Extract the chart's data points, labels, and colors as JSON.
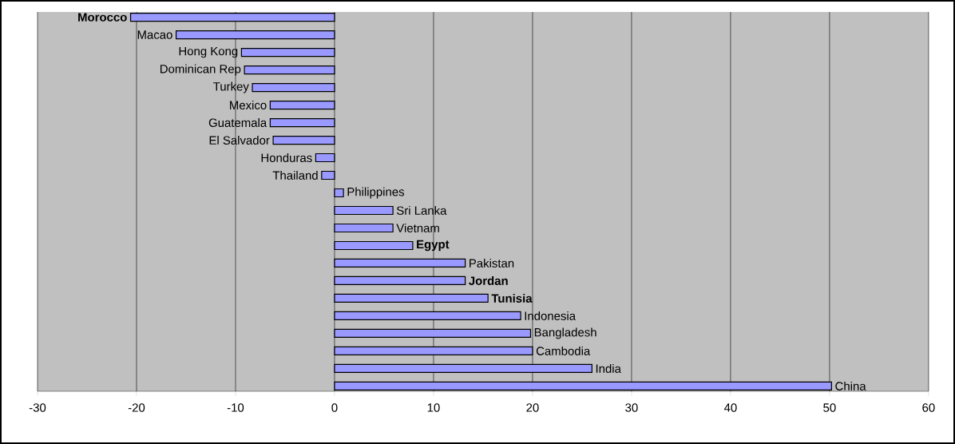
{
  "chart_data": {
    "type": "bar",
    "orientation": "horizontal",
    "categories": [
      "**Morocco**",
      "Macao",
      "Hong Kong",
      "Dominican Rep",
      "Turkey",
      "Mexico",
      "Guatemala",
      "El Salvador",
      "Honduras",
      "Thailand",
      "Philippines",
      "Sri Lanka",
      "Vietnam",
      "**Egypt**",
      "Pakistan",
      "**Jordan**",
      "**Tunisia**",
      "Indonesia",
      "Bangladesh",
      "Cambodia",
      "India",
      "China"
    ],
    "values": [
      -20.6,
      -16.0,
      -9.4,
      -9.1,
      -8.3,
      -6.5,
      -6.5,
      -6.2,
      -1.9,
      -1.3,
      0.9,
      5.9,
      5.9,
      7.9,
      13.2,
      13.2,
      15.5,
      18.8,
      19.8,
      20.0,
      26.0,
      50.2
    ],
    "color": "#9999ff",
    "xlim": [
      -30,
      60
    ],
    "xticks": [
      -30,
      -20,
      -10,
      0,
      10,
      20,
      30,
      40,
      50,
      60
    ],
    "grid": "x"
  }
}
